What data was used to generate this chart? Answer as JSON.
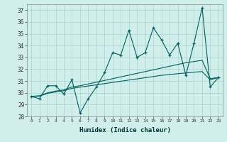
{
  "xlabel": "Humidex (Indice chaleur)",
  "ylabel": "",
  "background_color": "#d0eeea",
  "grid_color": "#b0d8d4",
  "line_color": "#005f5f",
  "xlim": [
    -0.5,
    23.5
  ],
  "ylim": [
    28,
    37.5
  ],
  "yticks": [
    28,
    29,
    30,
    31,
    32,
    33,
    34,
    35,
    36,
    37
  ],
  "xticks": [
    0,
    1,
    2,
    3,
    4,
    5,
    6,
    7,
    8,
    9,
    10,
    11,
    12,
    13,
    14,
    15,
    16,
    17,
    18,
    19,
    20,
    21,
    22,
    23
  ],
  "series_main": [
    29.7,
    29.5,
    30.6,
    30.6,
    29.9,
    31.1,
    28.3,
    29.5,
    30.5,
    31.7,
    33.4,
    33.2,
    35.3,
    33.0,
    33.4,
    35.5,
    34.5,
    33.2,
    34.2,
    31.5,
    34.2,
    37.2,
    30.5,
    31.3
  ],
  "series_smooth1": [
    29.7,
    29.75,
    30.0,
    30.15,
    30.25,
    30.5,
    30.6,
    30.75,
    30.9,
    31.05,
    31.2,
    31.35,
    31.5,
    31.65,
    31.8,
    31.95,
    32.1,
    32.25,
    32.4,
    32.55,
    32.65,
    32.75,
    31.2,
    31.3
  ],
  "series_smooth2": [
    29.7,
    29.72,
    29.95,
    30.08,
    30.18,
    30.38,
    30.48,
    30.58,
    30.68,
    30.78,
    30.88,
    30.98,
    31.08,
    31.18,
    31.28,
    31.38,
    31.48,
    31.55,
    31.62,
    31.68,
    31.75,
    31.8,
    31.1,
    31.3
  ]
}
